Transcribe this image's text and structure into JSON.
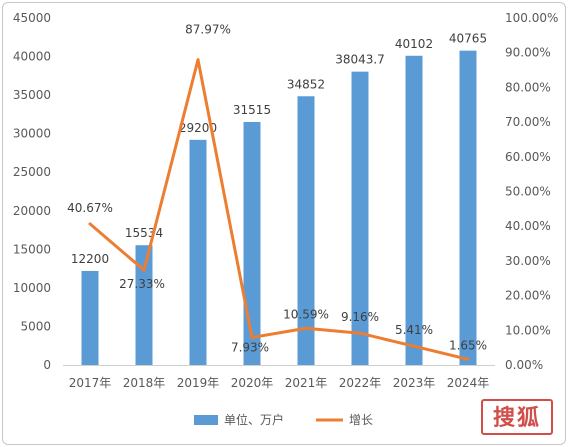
{
  "chart_data": {
    "type": "bar",
    "categories": [
      "2017年",
      "2018年",
      "2019年",
      "2020年",
      "2021年",
      "2022年",
      "2023年",
      "2024年"
    ],
    "series": [
      {
        "name": "单位、万户",
        "type": "bar",
        "axis": "left",
        "values": [
          12200,
          15534,
          29200,
          31515,
          34852,
          38043.7,
          40102,
          40765
        ],
        "labels": [
          "12200",
          "15534",
          "29200",
          "31515",
          "34852",
          "38043.7",
          "40102",
          "40765"
        ],
        "color": "#5b9bd5"
      },
      {
        "name": "增长",
        "type": "line",
        "axis": "right",
        "values": [
          40.67,
          27.33,
          87.97,
          7.93,
          10.59,
          9.16,
          5.41,
          1.65
        ],
        "labels": [
          "40.67%",
          "27.33%",
          "87.97%",
          "7.93%",
          "10.59%",
          "9.16%",
          "5.41%",
          "1.65%"
        ],
        "color": "#ed7d31"
      }
    ],
    "y_left": {
      "ylim": [
        0,
        45000
      ],
      "ticks": [
        "0",
        "5000",
        "10000",
        "15000",
        "20000",
        "25000",
        "30000",
        "35000",
        "40000",
        "45000"
      ]
    },
    "y_right": {
      "ylim": [
        0,
        100
      ],
      "ticks": [
        "0.00%",
        "10.00%",
        "20.00%",
        "30.00%",
        "40.00%",
        "50.00%",
        "60.00%",
        "70.00%",
        "80.00%",
        "90.00%",
        "100.00%"
      ]
    },
    "legend_position": "bottom",
    "grid": false
  },
  "watermark": {
    "text": "搜狐"
  }
}
